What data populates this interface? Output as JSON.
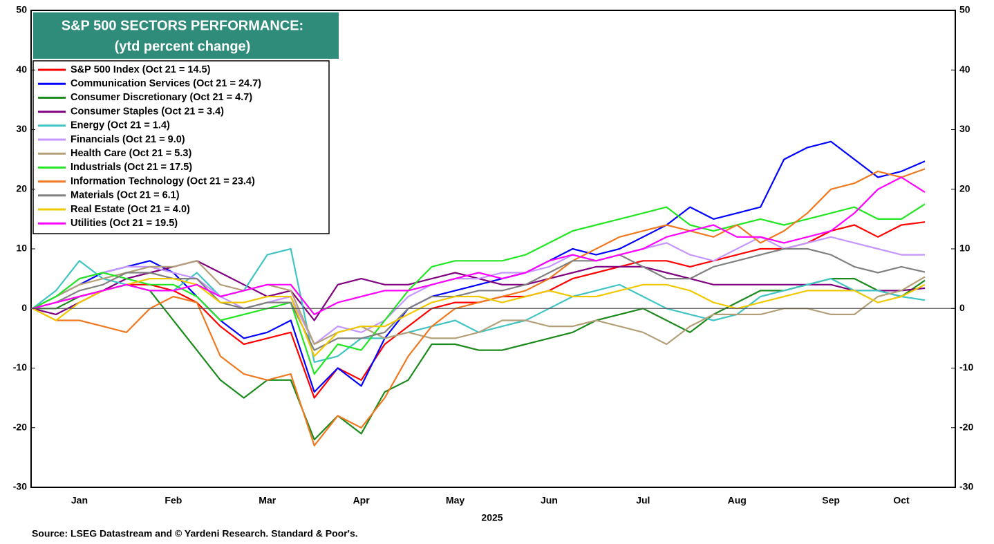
{
  "chart_data": {
    "type": "line",
    "title": "S&P 500 SECTORS PERFORMANCE:",
    "subtitle": "(ytd percent change)",
    "xlabel": "2025",
    "source": "Source: LSEG Datastream and © Yardeni Research. Standard & Poor's.",
    "categories": [
      null,
      null,
      "Jan",
      null,
      null,
      null,
      "Feb",
      null,
      null,
      null,
      "Mar",
      null,
      null,
      null,
      "Apr",
      null,
      null,
      null,
      "May",
      null,
      null,
      null,
      "Jun",
      null,
      null,
      null,
      "Jul",
      null,
      null,
      null,
      "Aug",
      null,
      null,
      null,
      "Sep",
      null,
      null,
      "Oct",
      null
    ],
    "ylim": [
      -30,
      50
    ],
    "yticks": [
      -30,
      -20,
      -10,
      0,
      10,
      20,
      30,
      40,
      50
    ],
    "y2lim": [
      -30,
      50
    ],
    "y2ticks": [
      -30,
      -20,
      -10,
      0,
      10,
      20,
      30,
      40,
      50
    ],
    "zeroline": true,
    "grid": false,
    "legend": "upper left",
    "series": [
      {
        "name": "S&P 500 Index (Oct 21 = 14.5)",
        "color": "#ff0000",
        "values": [
          0,
          1,
          2,
          3,
          4,
          4,
          3,
          1,
          -3,
          -6,
          -5,
          -4,
          -15,
          -10,
          -12,
          -6,
          -3,
          0,
          1,
          1,
          2,
          2,
          3,
          5,
          6,
          7,
          8,
          8,
          7,
          8,
          9,
          10,
          10,
          11,
          13,
          14,
          12,
          14,
          14.5
        ]
      },
      {
        "name": "Communication Services (Oct 21 = 24.7)",
        "color": "#0000ff",
        "values": [
          0,
          2,
          4,
          6,
          7,
          8,
          6,
          2,
          -2,
          -5,
          -4,
          -2,
          -14,
          -10,
          -13,
          -5,
          0,
          2,
          3,
          4,
          5,
          6,
          8,
          10,
          9,
          10,
          12,
          14,
          17,
          15,
          16,
          17,
          25,
          27,
          28,
          25,
          22,
          23,
          24.7
        ]
      },
      {
        "name": "Consumer Discretionary (Oct 21 = 4.7)",
        "color": "#1a8a1a",
        "values": [
          0,
          0,
          2,
          3,
          4,
          3,
          -2,
          -7,
          -12,
          -15,
          -12,
          -12,
          -22,
          -18,
          -21,
          -14,
          -12,
          -6,
          -6,
          -7,
          -7,
          -6,
          -5,
          -4,
          -2,
          -1,
          0,
          -2,
          -4,
          -1,
          1,
          3,
          3,
          4,
          5,
          5,
          3,
          2,
          4.7
        ]
      },
      {
        "name": "Consumer Staples (Oct 21 = 3.4)",
        "color": "#800080",
        "values": [
          0,
          -1,
          1,
          3,
          5,
          6,
          7,
          8,
          6,
          4,
          2,
          3,
          -2,
          4,
          5,
          4,
          4,
          5,
          6,
          5,
          4,
          4,
          5,
          6,
          7,
          7,
          7,
          6,
          5,
          4,
          4,
          4,
          4,
          4,
          4,
          3,
          3,
          3,
          3.4
        ]
      },
      {
        "name": "Energy (Oct 21 = 1.4)",
        "color": "#40c4c4",
        "values": [
          0,
          3,
          8,
          5,
          4,
          3,
          3,
          6,
          2,
          3,
          9,
          10,
          -9,
          -8,
          -5,
          -5,
          -4,
          -3,
          -2,
          -4,
          -3,
          -2,
          0,
          2,
          3,
          4,
          2,
          0,
          -1,
          -2,
          -1,
          2,
          3,
          4,
          5,
          3,
          3,
          2,
          1.4
        ]
      },
      {
        "name": "Financials (Oct 21 = 9.0)",
        "color": "#c496ff",
        "values": [
          0,
          2,
          5,
          6,
          7,
          7,
          6,
          5,
          2,
          0,
          1,
          2,
          -6,
          -3,
          -4,
          -2,
          2,
          4,
          5,
          5,
          6,
          6,
          7,
          9,
          8,
          9,
          10,
          11,
          9,
          8,
          10,
          12,
          10,
          11,
          12,
          11,
          10,
          9,
          9.0
        ]
      },
      {
        "name": "Health Care (Oct 21 = 5.3)",
        "color": "#b4a078",
        "values": [
          0,
          2,
          4,
          5,
          6,
          7,
          7,
          8,
          4,
          3,
          4,
          3,
          -6,
          -4,
          -3,
          -5,
          -4,
          -5,
          -5,
          -4,
          -2,
          -2,
          -3,
          -3,
          -2,
          -3,
          -4,
          -6,
          -3,
          -1,
          -1,
          -1,
          0,
          0,
          -1,
          -1,
          2,
          3,
          5.3
        ]
      },
      {
        "name": "Industrials (Oct 21 = 17.5)",
        "color": "#22e622",
        "values": [
          0,
          2,
          5,
          6,
          5,
          4,
          4,
          2,
          -2,
          -1,
          0,
          1,
          -11,
          -6,
          -7,
          -2,
          3,
          7,
          8,
          8,
          8,
          9,
          11,
          13,
          14,
          15,
          16,
          17,
          14,
          13,
          14,
          15,
          14,
          15,
          16,
          17,
          15,
          15,
          17.5
        ]
      },
      {
        "name": "Information Technology (Oct 21 = 23.4)",
        "color": "#f07820",
        "values": [
          0,
          -2,
          -2,
          -3,
          -4,
          0,
          2,
          1,
          -8,
          -11,
          -12,
          -11,
          -23,
          -18,
          -20,
          -15,
          -8,
          -3,
          0,
          1,
          2,
          3,
          5,
          8,
          10,
          12,
          13,
          14,
          13,
          12,
          14,
          11,
          13,
          16,
          20,
          21,
          23,
          22,
          23.4
        ]
      },
      {
        "name": "Materials (Oct 21 = 6.1)",
        "color": "#808080",
        "values": [
          0,
          1,
          3,
          4,
          6,
          6,
          5,
          5,
          1,
          0,
          1,
          1,
          -7,
          -5,
          -5,
          -4,
          0,
          2,
          2,
          3,
          3,
          4,
          6,
          8,
          8,
          9,
          7,
          5,
          5,
          7,
          8,
          9,
          10,
          10,
          9,
          7,
          6,
          7,
          6.1
        ]
      },
      {
        "name": "Real Estate (Oct 21 = 4.0)",
        "color": "#f0c800",
        "values": [
          0,
          -2,
          1,
          3,
          4,
          5,
          5,
          4,
          1,
          1,
          2,
          2,
          -8,
          -4,
          -3,
          -3,
          -1,
          1,
          2,
          2,
          1,
          2,
          3,
          2,
          2,
          3,
          4,
          4,
          3,
          1,
          0,
          1,
          2,
          3,
          3,
          3,
          1,
          2,
          4.0
        ]
      },
      {
        "name": "Utilities (Oct 21 = 19.5)",
        "color": "#ff00ff",
        "values": [
          0,
          1,
          2,
          3,
          4,
          3,
          3,
          4,
          2,
          3,
          4,
          4,
          -1,
          1,
          2,
          3,
          3,
          4,
          5,
          6,
          5,
          6,
          8,
          9,
          8,
          9,
          10,
          12,
          13,
          14,
          12,
          12,
          11,
          12,
          13,
          16,
          20,
          22,
          19.5
        ]
      }
    ]
  }
}
